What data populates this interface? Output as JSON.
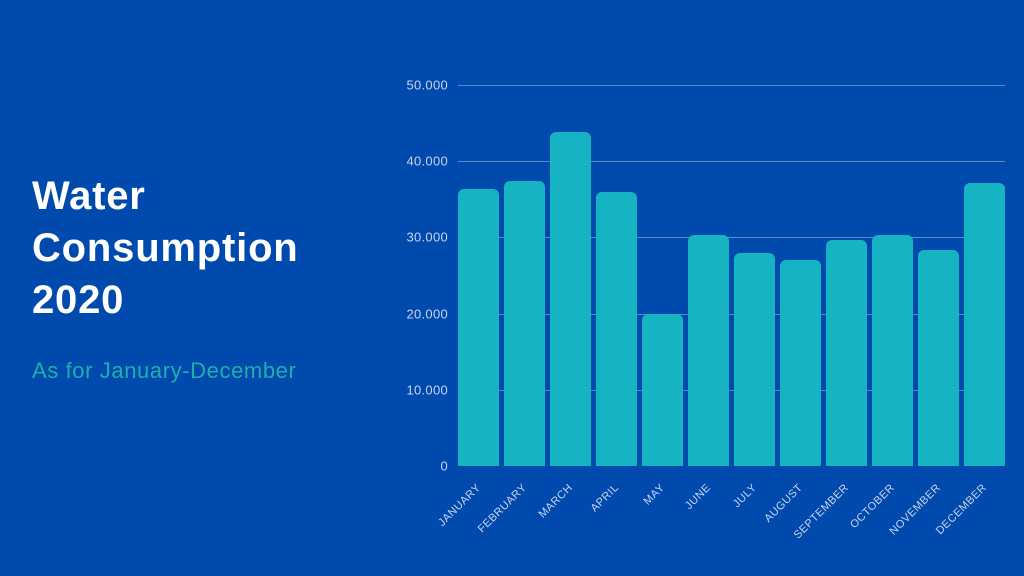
{
  "page": {
    "background_color": "#004aad"
  },
  "header": {
    "title_lines": [
      "Water",
      "Consumption",
      "2020"
    ],
    "title_color": "#ffffff",
    "subtitle": "As for January-December",
    "subtitle_color": "#1fafab"
  },
  "chart_data": {
    "type": "bar",
    "title": "Water Consumption 2020",
    "subtitle": "As for January-December",
    "categories": [
      "JANUARY",
      "FEBRUARY",
      "MARCH",
      "APRIL",
      "MAY",
      "JUNE",
      "JULY",
      "AUGUST",
      "SEPTEMBER",
      "OCTOBER",
      "NOVEMBER",
      "DECEMBER"
    ],
    "values": [
      36300,
      37400,
      43800,
      35900,
      20000,
      30300,
      28000,
      27000,
      29700,
      30300,
      28400,
      37100
    ],
    "xlabel": "",
    "ylabel": "",
    "ylim": [
      0,
      50000
    ],
    "ytick_step": 10000,
    "ytick_labels": [
      "50.000",
      "40.000",
      "30.000",
      "20.000",
      "10.000",
      "0"
    ],
    "grid": true,
    "legend_position": "none",
    "bar_color": "#16b3c2",
    "gridline_color": "rgba(255,255,255,0.35)",
    "axis_label_color": "#c7d4f0"
  }
}
